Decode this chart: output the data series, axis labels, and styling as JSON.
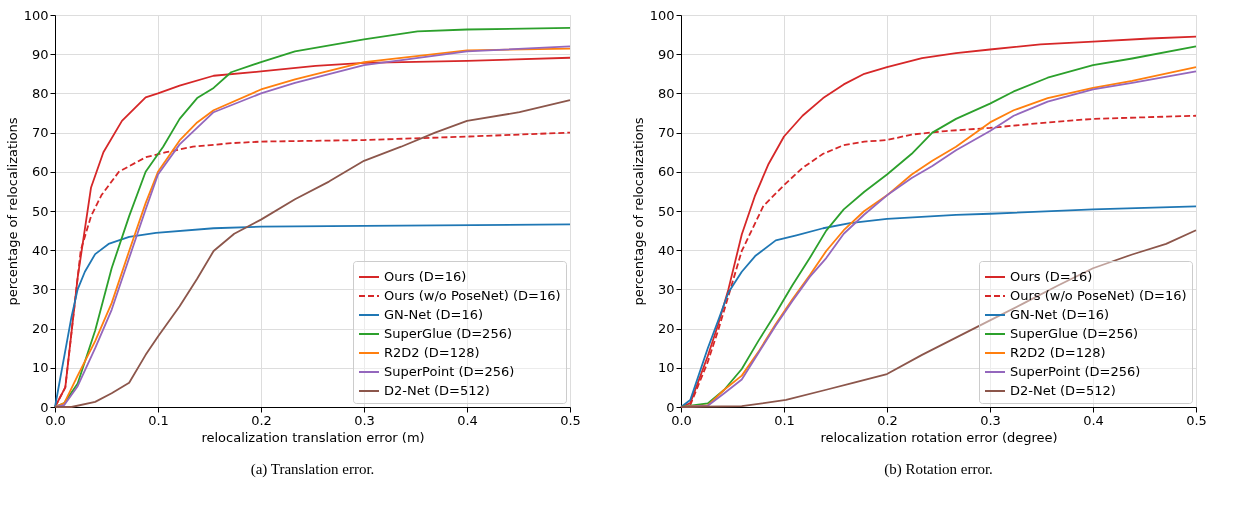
{
  "chart_data": [
    {
      "type": "line",
      "title": "(a) Translation error.",
      "xlabel": "relocalization translation error (m)",
      "ylabel": "percentage of relocalizations",
      "xlim": [
        0,
        0.5
      ],
      "xticks": [
        {
          "value": 0,
          "label": "0.0"
        },
        0.1,
        0.2,
        0.3,
        0.4,
        0.5
      ],
      "ylim": [
        0,
        100
      ],
      "yticks": [
        0,
        10,
        20,
        30,
        40,
        50,
        60,
        70,
        80,
        90,
        100
      ],
      "grid": true,
      "legend": "bottom right",
      "marker": "none",
      "series": [
        {
          "name": "Ours (D=16)",
          "color": "#d62728",
          "line_style": "solid",
          "x": [
            0,
            0.01,
            0.022,
            0.035,
            0.047,
            0.065,
            0.088,
            0.1,
            0.121,
            0.154,
            0.2,
            0.253,
            0.3,
            0.4,
            0.5
          ],
          "values": [
            0,
            5,
            33,
            56,
            65,
            73,
            79,
            80,
            82,
            84.5,
            85.6,
            87,
            87.8,
            88.3,
            89.1
          ]
        },
        {
          "name": "Ours (w/o PoseNet) (D=16)",
          "color": "#d62728",
          "line_style": "dashed",
          "x": [
            0,
            0.01,
            0.025,
            0.035,
            0.045,
            0.062,
            0.088,
            0.108,
            0.134,
            0.171,
            0.2,
            0.3,
            0.402,
            0.5
          ],
          "values": [
            0,
            5,
            40,
            48.7,
            54,
            60,
            63.7,
            65,
            66.4,
            67.3,
            67.7,
            68.1,
            69,
            70
          ]
        },
        {
          "name": "GN-Net (D=16)",
          "color": "#1f77b4",
          "line_style": "solid",
          "x": [
            0,
            0.016,
            0.022,
            0.029,
            0.039,
            0.052,
            0.072,
            0.098,
            0.154,
            0.2,
            0.3,
            0.5
          ],
          "values": [
            0,
            23,
            30,
            34.5,
            39,
            41.6,
            43.4,
            44.4,
            45.6,
            46,
            46.2,
            46.6
          ]
        },
        {
          "name": "SuperGlue (D=256)",
          "color": "#2ca02c",
          "line_style": "solid",
          "x": [
            0,
            0.009,
            0.022,
            0.039,
            0.055,
            0.072,
            0.088,
            0.105,
            0.121,
            0.138,
            0.154,
            0.171,
            0.2,
            0.233,
            0.3,
            0.352,
            0.4,
            0.5
          ],
          "values": [
            0,
            1,
            6,
            19.5,
            35.4,
            48.7,
            60,
            66.4,
            73.5,
            78.8,
            81.4,
            85.4,
            88,
            90.7,
            93.8,
            95.8,
            96.3,
            96.7
          ]
        },
        {
          "name": "R2D2 (D=128)",
          "color": "#ff7f0e",
          "line_style": "solid",
          "x": [
            0,
            0.009,
            0.022,
            0.039,
            0.055,
            0.072,
            0.088,
            0.1,
            0.121,
            0.138,
            0.154,
            0.2,
            0.233,
            0.3,
            0.4,
            0.5
          ],
          "values": [
            0,
            1,
            8,
            16.8,
            26.5,
            39.8,
            52,
            60,
            68,
            72.6,
            75.7,
            81,
            83.6,
            88,
            91,
            91.4
          ]
        },
        {
          "name": "SuperPoint (D=256)",
          "color": "#9467bd",
          "line_style": "solid",
          "x": [
            0,
            0.009,
            0.022,
            0.039,
            0.055,
            0.072,
            0.088,
            0.1,
            0.121,
            0.154,
            0.2,
            0.233,
            0.3,
            0.4,
            0.5
          ],
          "values": [
            0,
            0.5,
            5.3,
            15,
            24.8,
            38,
            50.4,
            59.3,
            67,
            75.2,
            80,
            82.7,
            87.2,
            90.7,
            92
          ]
        },
        {
          "name": "D2-Net (D=512)",
          "color": "#8c564b",
          "line_style": "solid",
          "x": [
            0,
            0.016,
            0.039,
            0.055,
            0.072,
            0.088,
            0.1,
            0.121,
            0.138,
            0.154,
            0.174,
            0.2,
            0.233,
            0.266,
            0.3,
            0.336,
            0.369,
            0.4,
            0.451,
            0.5
          ],
          "values": [
            0,
            0,
            1.3,
            3.5,
            6.2,
            13.3,
            18,
            25.7,
            32.7,
            39.8,
            44.2,
            47.8,
            53,
            57.5,
            62.8,
            66.4,
            70,
            73,
            75.2,
            78.3
          ]
        }
      ]
    },
    {
      "type": "line",
      "title": "(b) Rotation error.",
      "xlabel": "relocalization rotation error (degree)",
      "ylabel": "percentage of relocalizations",
      "xlim": [
        0,
        0.5
      ],
      "xticks": [
        {
          "value": 0,
          "label": "0.0"
        },
        0.1,
        0.2,
        0.3,
        0.4,
        0.5
      ],
      "ylim": [
        0,
        100
      ],
      "yticks": [
        0,
        10,
        20,
        30,
        40,
        50,
        60,
        70,
        80,
        90,
        100
      ],
      "grid": true,
      "legend": "bottom right",
      "marker": "none",
      "series": [
        {
          "name": "Ours (D=16)",
          "color": "#d62728",
          "line_style": "solid",
          "x": [
            0,
            0.009,
            0.026,
            0.036,
            0.046,
            0.059,
            0.072,
            0.085,
            0.1,
            0.118,
            0.138,
            0.158,
            0.178,
            0.2,
            0.234,
            0.267,
            0.3,
            0.349,
            0.4,
            0.455,
            0.5
          ],
          "values": [
            0,
            1,
            13,
            21,
            30,
            44,
            54,
            62,
            69,
            74.3,
            78.8,
            82.3,
            85,
            86.7,
            89,
            90.3,
            91.2,
            92.5,
            93.2,
            94,
            94.5
          ]
        },
        {
          "name": "Ours (w/o PoseNet) (D=16)",
          "color": "#d62728",
          "line_style": "dashed",
          "x": [
            0,
            0.009,
            0.026,
            0.036,
            0.046,
            0.059,
            0.072,
            0.08,
            0.1,
            0.118,
            0.138,
            0.158,
            0.178,
            0.2,
            0.224,
            0.257,
            0.3,
            0.356,
            0.4,
            0.5
          ],
          "values": [
            0,
            0.5,
            11.5,
            19.5,
            28.3,
            39.8,
            46.9,
            51.3,
            56.6,
            61,
            64.6,
            66.8,
            67.7,
            68.1,
            69.5,
            70.4,
            71.2,
            72.6,
            73.5,
            74.3
          ]
        },
        {
          "name": "GN-Net (D=16)",
          "color": "#1f77b4",
          "line_style": "solid",
          "x": [
            0,
            0.009,
            0.026,
            0.036,
            0.046,
            0.059,
            0.072,
            0.092,
            0.112,
            0.138,
            0.164,
            0.2,
            0.267,
            0.3,
            0.4,
            0.5
          ],
          "values": [
            0,
            1.8,
            15,
            22,
            29.2,
            34.5,
            38.5,
            42.5,
            43.8,
            45.6,
            46.9,
            48,
            49,
            49.3,
            50.4,
            51.2
          ]
        },
        {
          "name": "SuperGlue (D=256)",
          "color": "#2ca02c",
          "line_style": "solid",
          "x": [
            0,
            0.026,
            0.042,
            0.059,
            0.075,
            0.092,
            0.108,
            0.125,
            0.141,
            0.158,
            0.178,
            0.2,
            0.224,
            0.244,
            0.267,
            0.3,
            0.323,
            0.356,
            0.4,
            0.438,
            0.5
          ],
          "values": [
            0,
            0.9,
            4.4,
            9.7,
            16.8,
            23.9,
            31,
            38,
            45,
            50.4,
            54.9,
            59.3,
            64.6,
            70,
            73.5,
            77.4,
            80.5,
            84,
            87.2,
            88.9,
            92
          ]
        },
        {
          "name": "R2D2 (D=128)",
          "color": "#ff7f0e",
          "line_style": "solid",
          "x": [
            0,
            0.026,
            0.042,
            0.059,
            0.075,
            0.092,
            0.108,
            0.125,
            0.141,
            0.158,
            0.178,
            0.2,
            0.224,
            0.244,
            0.267,
            0.3,
            0.323,
            0.356,
            0.4,
            0.438,
            0.5
          ],
          "values": [
            0,
            0.4,
            4.4,
            8,
            14,
            21.2,
            27.4,
            33.6,
            39.8,
            45.1,
            50,
            54,
            59.3,
            62.8,
            66.4,
            72.6,
            75.7,
            78.8,
            81.4,
            83.2,
            86.7
          ]
        },
        {
          "name": "SuperPoint (D=256)",
          "color": "#9467bd",
          "line_style": "solid",
          "x": [
            0,
            0.026,
            0.042,
            0.059,
            0.075,
            0.092,
            0.108,
            0.125,
            0.141,
            0.158,
            0.178,
            0.2,
            0.224,
            0.244,
            0.267,
            0.3,
            0.323,
            0.356,
            0.4,
            0.438,
            0.5
          ],
          "values": [
            0,
            0.3,
            3.5,
            7,
            13.7,
            20.8,
            27,
            33.2,
            38,
            44.2,
            49.1,
            54,
            58.4,
            61.5,
            65.5,
            70.4,
            74.3,
            77.9,
            81,
            82.7,
            85.6
          ]
        },
        {
          "name": "D2-Net (D=512)",
          "color": "#8c564b",
          "line_style": "solid",
          "x": [
            0,
            0.059,
            0.102,
            0.141,
            0.168,
            0.2,
            0.234,
            0.267,
            0.3,
            0.333,
            0.366,
            0.4,
            0.438,
            0.471,
            0.5
          ],
          "values": [
            0,
            0.2,
            1.8,
            4.4,
            6.2,
            8.4,
            13.3,
            17.7,
            22.1,
            26.5,
            31,
            35.4,
            38.9,
            41.6,
            45.1
          ]
        }
      ]
    }
  ]
}
